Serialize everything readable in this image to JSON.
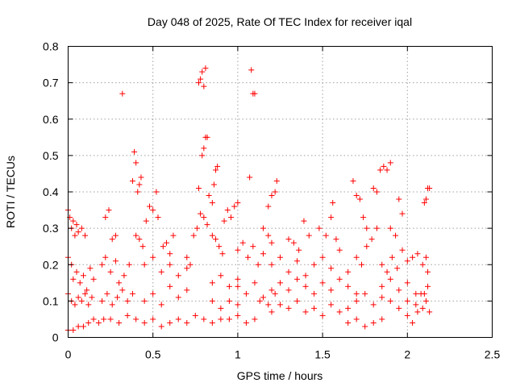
{
  "chart_data": {
    "type": "scatter",
    "title": "Day 048 of 2025, Rate Of TEC Index for receiver iqal",
    "xlabel": "GPS time / hours",
    "ylabel": "ROTI / TECUs",
    "xlim": [
      0,
      2.5
    ],
    "ylim": [
      0,
      0.8
    ],
    "xticks": [
      0,
      0.5,
      1,
      1.5,
      2,
      2.5
    ],
    "xtick_labels": [
      "0",
      "0.5",
      "1",
      "1.5",
      "2",
      "2.5"
    ],
    "yticks": [
      0,
      0.1,
      0.2,
      0.3,
      0.4,
      0.5,
      0.6,
      0.7,
      0.8
    ],
    "ytick_labels": [
      "0",
      "0.1",
      "0.2",
      "0.3",
      "0.4",
      "0.5",
      "0.6",
      "0.7",
      "0.8"
    ],
    "grid": true,
    "marker": "plus",
    "color": "#ff0000",
    "series": [
      {
        "values": [
          [
            0.0,
            0.35
          ],
          [
            0.01,
            0.33
          ],
          [
            0.02,
            0.3
          ],
          [
            0.03,
            0.32
          ],
          [
            0.04,
            0.28
          ],
          [
            0.05,
            0.31
          ],
          [
            0.06,
            0.29
          ],
          [
            0.08,
            0.3
          ],
          [
            0.1,
            0.28
          ],
          [
            0.0,
            0.22
          ],
          [
            0.02,
            0.2
          ],
          [
            0.03,
            0.16
          ],
          [
            0.05,
            0.18
          ],
          [
            0.07,
            0.15
          ],
          [
            0.09,
            0.17
          ],
          [
            0.11,
            0.13
          ],
          [
            0.13,
            0.19
          ],
          [
            0.15,
            0.16
          ],
          [
            0.0,
            0.12
          ],
          [
            0.02,
            0.1
          ],
          [
            0.04,
            0.09
          ],
          [
            0.06,
            0.11
          ],
          [
            0.08,
            0.1
          ],
          [
            0.1,
            0.12
          ],
          [
            0.12,
            0.09
          ],
          [
            0.14,
            0.11
          ],
          [
            0.0,
            0.02
          ],
          [
            0.03,
            0.02
          ],
          [
            0.06,
            0.03
          ],
          [
            0.09,
            0.03
          ],
          [
            0.12,
            0.04
          ],
          [
            0.15,
            0.05
          ],
          [
            0.18,
            0.04
          ],
          [
            0.21,
            0.05
          ],
          [
            0.22,
            0.33
          ],
          [
            0.24,
            0.35
          ],
          [
            0.26,
            0.27
          ],
          [
            0.28,
            0.28
          ],
          [
            0.2,
            0.2
          ],
          [
            0.22,
            0.22
          ],
          [
            0.25,
            0.18
          ],
          [
            0.28,
            0.21
          ],
          [
            0.3,
            0.15
          ],
          [
            0.33,
            0.17
          ],
          [
            0.36,
            0.2
          ],
          [
            0.2,
            0.1
          ],
          [
            0.23,
            0.12
          ],
          [
            0.26,
            0.09
          ],
          [
            0.29,
            0.11
          ],
          [
            0.32,
            0.13
          ],
          [
            0.35,
            0.1
          ],
          [
            0.38,
            0.12
          ],
          [
            0.25,
            0.05
          ],
          [
            0.3,
            0.04
          ],
          [
            0.35,
            0.06
          ],
          [
            0.4,
            0.05
          ],
          [
            0.45,
            0.04
          ],
          [
            0.5,
            0.05
          ],
          [
            0.55,
            0.03
          ],
          [
            0.6,
            0.04
          ],
          [
            0.32,
            0.67
          ],
          [
            0.38,
            0.43
          ],
          [
            0.39,
            0.51
          ],
          [
            0.4,
            0.48
          ],
          [
            0.41,
            0.4
          ],
          [
            0.42,
            0.42
          ],
          [
            0.43,
            0.44
          ],
          [
            0.4,
            0.28
          ],
          [
            0.42,
            0.27
          ],
          [
            0.44,
            0.25
          ],
          [
            0.46,
            0.32
          ],
          [
            0.48,
            0.36
          ],
          [
            0.5,
            0.35
          ],
          [
            0.52,
            0.4
          ],
          [
            0.53,
            0.33
          ],
          [
            0.45,
            0.2
          ],
          [
            0.5,
            0.22
          ],
          [
            0.55,
            0.18
          ],
          [
            0.6,
            0.2
          ],
          [
            0.65,
            0.17
          ],
          [
            0.7,
            0.19
          ],
          [
            0.45,
            0.1
          ],
          [
            0.5,
            0.12
          ],
          [
            0.55,
            0.09
          ],
          [
            0.6,
            0.14
          ],
          [
            0.65,
            0.11
          ],
          [
            0.7,
            0.13
          ],
          [
            0.56,
            0.25
          ],
          [
            0.58,
            0.26
          ],
          [
            0.6,
            0.23
          ],
          [
            0.62,
            0.28
          ],
          [
            0.65,
            0.05
          ],
          [
            0.7,
            0.04
          ],
          [
            0.75,
            0.06
          ],
          [
            0.8,
            0.05
          ],
          [
            0.85,
            0.04
          ],
          [
            0.9,
            0.05
          ],
          [
            0.7,
            0.22
          ],
          [
            0.72,
            0.2
          ],
          [
            0.74,
            0.28
          ],
          [
            0.76,
            0.3
          ],
          [
            0.78,
            0.34
          ],
          [
            0.8,
            0.33
          ],
          [
            0.82,
            0.31
          ],
          [
            0.77,
            0.41
          ],
          [
            0.79,
            0.5
          ],
          [
            0.8,
            0.52
          ],
          [
            0.81,
            0.55
          ],
          [
            0.82,
            0.55
          ],
          [
            0.77,
            0.7
          ],
          [
            0.78,
            0.71
          ],
          [
            0.79,
            0.73
          ],
          [
            0.8,
            0.69
          ],
          [
            0.81,
            0.74
          ],
          [
            0.83,
            0.39
          ],
          [
            0.85,
            0.37
          ],
          [
            0.86,
            0.42
          ],
          [
            0.87,
            0.46
          ],
          [
            0.88,
            0.47
          ],
          [
            0.85,
            0.28
          ],
          [
            0.87,
            0.27
          ],
          [
            0.89,
            0.25
          ],
          [
            0.91,
            0.23
          ],
          [
            0.85,
            0.15
          ],
          [
            0.9,
            0.17
          ],
          [
            0.95,
            0.14
          ],
          [
            1.0,
            0.16
          ],
          [
            0.85,
            0.1
          ],
          [
            0.9,
            0.08
          ],
          [
            0.95,
            0.1
          ],
          [
            1.0,
            0.09
          ],
          [
            0.92,
            0.32
          ],
          [
            0.94,
            0.35
          ],
          [
            0.96,
            0.33
          ],
          [
            0.98,
            0.36
          ],
          [
            1.0,
            0.37
          ],
          [
            0.95,
            0.05
          ],
          [
            1.0,
            0.06
          ],
          [
            1.05,
            0.04
          ],
          [
            1.1,
            0.05
          ],
          [
            1.07,
            0.44
          ],
          [
            1.08,
            0.735
          ],
          [
            1.09,
            0.67
          ],
          [
            1.1,
            0.67
          ],
          [
            1.0,
            0.24
          ],
          [
            1.03,
            0.26
          ],
          [
            1.06,
            0.22
          ],
          [
            1.09,
            0.25
          ],
          [
            1.12,
            0.2
          ],
          [
            1.15,
            0.23
          ],
          [
            1.0,
            0.14
          ],
          [
            1.05,
            0.12
          ],
          [
            1.1,
            0.15
          ],
          [
            1.15,
            0.11
          ],
          [
            1.2,
            0.13
          ],
          [
            1.13,
            0.1
          ],
          [
            1.18,
            0.09
          ],
          [
            1.22,
            0.12
          ],
          [
            1.18,
            0.36
          ],
          [
            1.2,
            0.39
          ],
          [
            1.22,
            0.4
          ],
          [
            1.23,
            0.43
          ],
          [
            1.15,
            0.3
          ],
          [
            1.18,
            0.28
          ],
          [
            1.2,
            0.26
          ],
          [
            1.2,
            0.2
          ],
          [
            1.25,
            0.22
          ],
          [
            1.3,
            0.18
          ],
          [
            1.35,
            0.21
          ],
          [
            1.4,
            0.17
          ],
          [
            1.25,
            0.15
          ],
          [
            1.3,
            0.13
          ],
          [
            1.35,
            0.16
          ],
          [
            1.4,
            0.14
          ],
          [
            1.45,
            0.12
          ],
          [
            1.2,
            0.07
          ],
          [
            1.25,
            0.09
          ],
          [
            1.3,
            0.08
          ],
          [
            1.35,
            0.1
          ],
          [
            1.3,
            0.27
          ],
          [
            1.33,
            0.26
          ],
          [
            1.36,
            0.24
          ],
          [
            1.39,
            0.32
          ],
          [
            1.42,
            0.28
          ],
          [
            1.4,
            0.07
          ],
          [
            1.45,
            0.08
          ],
          [
            1.5,
            0.06
          ],
          [
            1.55,
            0.09
          ],
          [
            1.6,
            0.07
          ],
          [
            1.65,
            0.08
          ],
          [
            1.45,
            0.2
          ],
          [
            1.5,
            0.22
          ],
          [
            1.55,
            0.19
          ],
          [
            1.6,
            0.24
          ],
          [
            1.65,
            0.18
          ],
          [
            1.48,
            0.3
          ],
          [
            1.52,
            0.28
          ],
          [
            1.55,
            0.33
          ],
          [
            1.56,
            0.37
          ],
          [
            1.58,
            0.27
          ],
          [
            1.5,
            0.15
          ],
          [
            1.55,
            0.13
          ],
          [
            1.6,
            0.16
          ],
          [
            1.65,
            0.14
          ],
          [
            1.7,
            0.12
          ],
          [
            1.65,
            0.04
          ],
          [
            1.7,
            0.05
          ],
          [
            1.75,
            0.03
          ],
          [
            1.8,
            0.04
          ],
          [
            1.85,
            0.05
          ],
          [
            1.68,
            0.43
          ],
          [
            1.7,
            0.39
          ],
          [
            1.72,
            0.38
          ],
          [
            1.74,
            0.33
          ],
          [
            1.76,
            0.3
          ],
          [
            1.7,
            0.22
          ],
          [
            1.73,
            0.2
          ],
          [
            1.76,
            0.25
          ],
          [
            1.79,
            0.27
          ],
          [
            1.82,
            0.3
          ],
          [
            1.7,
            0.1
          ],
          [
            1.75,
            0.12
          ],
          [
            1.8,
            0.09
          ],
          [
            1.85,
            0.11
          ],
          [
            1.9,
            0.1
          ],
          [
            1.8,
            0.41
          ],
          [
            1.82,
            0.4
          ],
          [
            1.84,
            0.46
          ],
          [
            1.86,
            0.47
          ],
          [
            1.88,
            0.46
          ],
          [
            1.9,
            0.48
          ],
          [
            1.85,
            0.2
          ],
          [
            1.88,
            0.18
          ],
          [
            1.91,
            0.22
          ],
          [
            1.94,
            0.19
          ],
          [
            1.97,
            0.24
          ],
          [
            1.85,
            0.14
          ],
          [
            1.9,
            0.16
          ],
          [
            1.95,
            0.13
          ],
          [
            2.0,
            0.15
          ],
          [
            2.05,
            0.12
          ],
          [
            1.9,
            0.3
          ],
          [
            1.93,
            0.28
          ],
          [
            1.95,
            0.38
          ],
          [
            1.97,
            0.34
          ],
          [
            1.95,
            0.08
          ],
          [
            2.0,
            0.06
          ],
          [
            2.03,
            0.04
          ],
          [
            2.06,
            0.07
          ],
          [
            2.09,
            0.08
          ],
          [
            2.0,
            0.21
          ],
          [
            2.03,
            0.22
          ],
          [
            2.06,
            0.23
          ],
          [
            2.09,
            0.2
          ],
          [
            2.11,
            0.22
          ],
          [
            2.12,
            0.18
          ],
          [
            2.1,
            0.37
          ],
          [
            2.11,
            0.38
          ],
          [
            2.12,
            0.41
          ],
          [
            2.13,
            0.41
          ],
          [
            2.1,
            0.12
          ],
          [
            2.11,
            0.1
          ],
          [
            2.12,
            0.14
          ],
          [
            2.13,
            0.07
          ],
          [
            2.0,
            0.1
          ],
          [
            2.05,
            0.09
          ],
          [
            2.08,
            0.12
          ]
        ]
      }
    ]
  }
}
